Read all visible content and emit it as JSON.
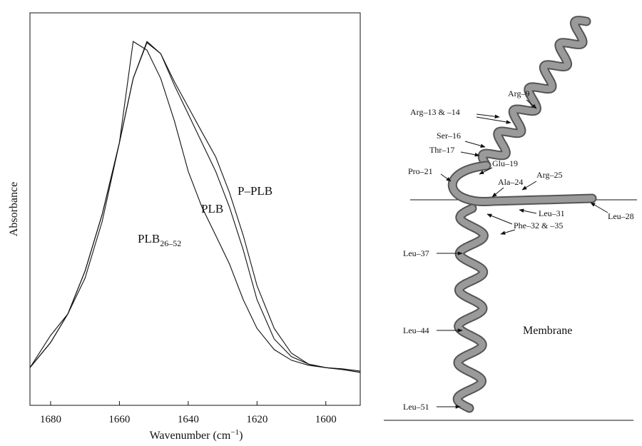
{
  "chart_data": {
    "type": "line",
    "ylabel": "Absorbance",
    "xlabel": {
      "text": "Wavenumber (cm",
      "superscript": "−1",
      "after": ")"
    },
    "x": [
      1686,
      1680,
      1675,
      1670,
      1665,
      1660,
      1656,
      1652,
      1648,
      1644,
      1640,
      1636,
      1632,
      1628,
      1624,
      1620,
      1615,
      1610,
      1605,
      1600,
      1595,
      1590
    ],
    "series": [
      {
        "name": "P–PLB",
        "color": "#111111",
        "values": [
          0.096,
          0.16,
          0.233,
          0.342,
          0.487,
          0.669,
          0.833,
          0.924,
          0.896,
          0.824,
          0.76,
          0.696,
          0.633,
          0.542,
          0.433,
          0.305,
          0.196,
          0.133,
          0.105,
          0.096,
          0.091,
          0.084
        ]
      },
      {
        "name": "PLB",
        "color": "#111111",
        "values": [
          0.096,
          0.16,
          0.233,
          0.342,
          0.487,
          0.669,
          0.833,
          0.927,
          0.896,
          0.815,
          0.742,
          0.669,
          0.596,
          0.505,
          0.396,
          0.269,
          0.169,
          0.124,
          0.105,
          0.096,
          0.093,
          0.087
        ]
      },
      {
        "name": "PLB",
        "name_subscript": "26–52",
        "color": "#111111",
        "values": [
          0.096,
          0.178,
          0.233,
          0.324,
          0.469,
          0.669,
          0.927,
          0.905,
          0.833,
          0.724,
          0.596,
          0.505,
          0.433,
          0.36,
          0.269,
          0.196,
          0.142,
          0.115,
          0.102,
          0.096,
          0.091,
          0.084
        ]
      }
    ],
    "xlim": [
      1686,
      1590
    ],
    "xticks": [
      1680,
      1660,
      1640,
      1620,
      1600
    ],
    "ylim": [
      0,
      1
    ],
    "grid": false
  },
  "diagram": {
    "region_label": "Membrane",
    "labels": [
      "Arg–9",
      "Arg–13 & –14",
      "Ser–16",
      "Thr–17",
      "Glu–19",
      "Pro–21",
      "Ala–24",
      "Arg–25",
      "Leu–28",
      "Leu–31",
      "Phe–32 & –35",
      "Leu–37",
      "Leu–44",
      "Leu–51"
    ]
  }
}
